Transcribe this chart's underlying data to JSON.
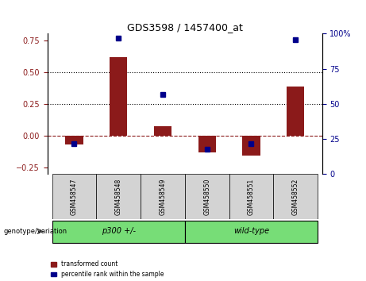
{
  "title": "GDS3598 / 1457400_at",
  "samples": [
    "GSM458547",
    "GSM458548",
    "GSM458549",
    "GSM458550",
    "GSM458551",
    "GSM458552"
  ],
  "transformed_count": [
    -0.065,
    0.615,
    0.075,
    -0.13,
    -0.155,
    0.385
  ],
  "percentile_rank": [
    22,
    97,
    57,
    18,
    22,
    96
  ],
  "group_bg_color": "#77DD77",
  "sample_bg_color": "#d3d3d3",
  "bar_color_red": "#8B1A1A",
  "bar_color_blue": "#00008B",
  "left_ylim": [
    -0.3,
    0.8
  ],
  "right_ylim": [
    0,
    100
  ],
  "left_yticks": [
    -0.25,
    0.0,
    0.25,
    0.5,
    0.75
  ],
  "right_yticks": [
    0,
    25,
    50,
    75,
    100
  ],
  "dotted_lines": [
    0.25,
    0.5
  ],
  "bar_width": 0.4,
  "genotype_label": "genotype/variation",
  "group_spans": [
    {
      "label": "p300 +/-",
      "start": 0,
      "end": 2
    },
    {
      "label": "wild-type",
      "start": 3,
      "end": 5
    }
  ]
}
